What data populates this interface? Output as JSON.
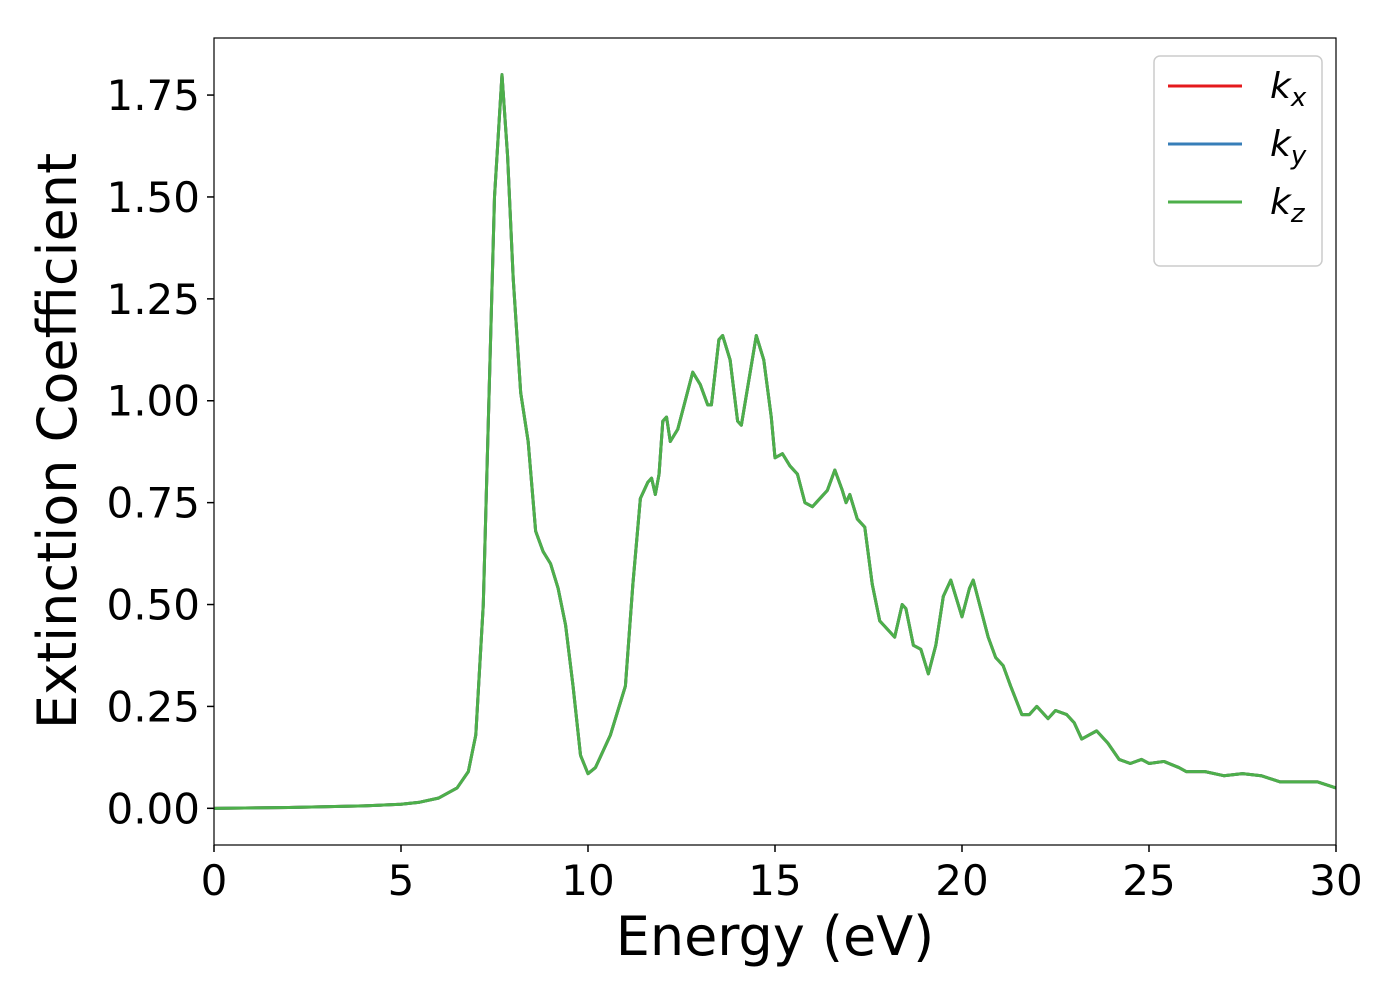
{
  "chart_data": {
    "type": "line",
    "xlabel": "Energy (eV)",
    "ylabel": "Extinction Coefficient",
    "x": [
      0,
      2,
      4,
      5,
      5.5,
      6,
      6.5,
      6.8,
      7.0,
      7.2,
      7.35,
      7.5,
      7.7,
      7.85,
      8.0,
      8.2,
      8.4,
      8.6,
      8.8,
      9.0,
      9.2,
      9.4,
      9.6,
      9.8,
      10.0,
      10.2,
      10.4,
      10.6,
      10.8,
      11.0,
      11.2,
      11.4,
      11.6,
      11.7,
      11.8,
      11.9,
      12.0,
      12.1,
      12.2,
      12.4,
      12.6,
      12.8,
      13.0,
      13.2,
      13.3,
      13.5,
      13.6,
      13.8,
      14.0,
      14.1,
      14.3,
      14.5,
      14.7,
      14.9,
      15.0,
      15.2,
      15.4,
      15.6,
      15.8,
      16.0,
      16.2,
      16.4,
      16.6,
      16.8,
      16.9,
      17.0,
      17.2,
      17.4,
      17.6,
      17.8,
      18.0,
      18.2,
      18.4,
      18.5,
      18.7,
      18.9,
      19.1,
      19.3,
      19.5,
      19.7,
      19.9,
      20.0,
      20.2,
      20.3,
      20.5,
      20.7,
      20.9,
      21.1,
      21.3,
      21.6,
      21.8,
      22.0,
      22.3,
      22.5,
      22.8,
      23.0,
      23.2,
      23.4,
      23.6,
      23.9,
      24.2,
      24.5,
      24.8,
      25.0,
      25.4,
      25.8,
      26.0,
      26.5,
      27.0,
      27.5,
      28.0,
      28.5,
      29.0,
      29.5,
      30.0
    ],
    "series": [
      {
        "name": "kx",
        "color": "#e41a1c",
        "values": [
          0,
          0.002,
          0.006,
          0.01,
          0.015,
          0.025,
          0.05,
          0.09,
          0.18,
          0.5,
          1.0,
          1.5,
          1.8,
          1.6,
          1.3,
          1.02,
          0.9,
          0.68,
          0.63,
          0.6,
          0.54,
          0.45,
          0.3,
          0.13,
          0.085,
          0.1,
          0.14,
          0.18,
          0.24,
          0.3,
          0.55,
          0.76,
          0.8,
          0.81,
          0.77,
          0.82,
          0.95,
          0.96,
          0.9,
          0.93,
          1.0,
          1.07,
          1.04,
          0.99,
          0.99,
          1.15,
          1.16,
          1.1,
          0.95,
          0.94,
          1.05,
          1.16,
          1.1,
          0.96,
          0.86,
          0.87,
          0.84,
          0.82,
          0.75,
          0.74,
          0.76,
          0.78,
          0.83,
          0.78,
          0.75,
          0.77,
          0.71,
          0.69,
          0.55,
          0.46,
          0.44,
          0.42,
          0.5,
          0.49,
          0.4,
          0.39,
          0.33,
          0.4,
          0.52,
          0.56,
          0.5,
          0.47,
          0.54,
          0.56,
          0.49,
          0.42,
          0.37,
          0.35,
          0.3,
          0.23,
          0.23,
          0.25,
          0.22,
          0.24,
          0.23,
          0.21,
          0.17,
          0.18,
          0.19,
          0.16,
          0.12,
          0.11,
          0.12,
          0.11,
          0.115,
          0.1,
          0.09,
          0.09,
          0.08,
          0.085,
          0.08,
          0.065,
          0.065,
          0.065,
          0.05
        ]
      },
      {
        "name": "ky",
        "color": "#377eb8",
        "values": [
          0,
          0.002,
          0.006,
          0.01,
          0.015,
          0.025,
          0.05,
          0.09,
          0.18,
          0.5,
          1.0,
          1.5,
          1.8,
          1.6,
          1.3,
          1.02,
          0.9,
          0.68,
          0.63,
          0.6,
          0.54,
          0.45,
          0.3,
          0.13,
          0.085,
          0.1,
          0.14,
          0.18,
          0.24,
          0.3,
          0.55,
          0.76,
          0.8,
          0.81,
          0.77,
          0.82,
          0.95,
          0.96,
          0.9,
          0.93,
          1.0,
          1.07,
          1.04,
          0.99,
          0.99,
          1.15,
          1.16,
          1.1,
          0.95,
          0.94,
          1.05,
          1.16,
          1.1,
          0.96,
          0.86,
          0.87,
          0.84,
          0.82,
          0.75,
          0.74,
          0.76,
          0.78,
          0.83,
          0.78,
          0.75,
          0.77,
          0.71,
          0.69,
          0.55,
          0.46,
          0.44,
          0.42,
          0.5,
          0.49,
          0.4,
          0.39,
          0.33,
          0.4,
          0.52,
          0.56,
          0.5,
          0.47,
          0.54,
          0.56,
          0.49,
          0.42,
          0.37,
          0.35,
          0.3,
          0.23,
          0.23,
          0.25,
          0.22,
          0.24,
          0.23,
          0.21,
          0.17,
          0.18,
          0.19,
          0.16,
          0.12,
          0.11,
          0.12,
          0.11,
          0.115,
          0.1,
          0.09,
          0.09,
          0.08,
          0.085,
          0.08,
          0.065,
          0.065,
          0.065,
          0.05
        ]
      },
      {
        "name": "kz",
        "color": "#4daf4a",
        "values": [
          0,
          0.002,
          0.006,
          0.01,
          0.015,
          0.025,
          0.05,
          0.09,
          0.18,
          0.5,
          1.0,
          1.5,
          1.8,
          1.6,
          1.3,
          1.02,
          0.9,
          0.68,
          0.63,
          0.6,
          0.54,
          0.45,
          0.3,
          0.13,
          0.085,
          0.1,
          0.14,
          0.18,
          0.24,
          0.3,
          0.55,
          0.76,
          0.8,
          0.81,
          0.77,
          0.82,
          0.95,
          0.96,
          0.9,
          0.93,
          1.0,
          1.07,
          1.04,
          0.99,
          0.99,
          1.15,
          1.16,
          1.1,
          0.95,
          0.94,
          1.05,
          1.16,
          1.1,
          0.96,
          0.86,
          0.87,
          0.84,
          0.82,
          0.75,
          0.74,
          0.76,
          0.78,
          0.83,
          0.78,
          0.75,
          0.77,
          0.71,
          0.69,
          0.55,
          0.46,
          0.44,
          0.42,
          0.5,
          0.49,
          0.4,
          0.39,
          0.33,
          0.4,
          0.52,
          0.56,
          0.5,
          0.47,
          0.54,
          0.56,
          0.49,
          0.42,
          0.37,
          0.35,
          0.3,
          0.23,
          0.23,
          0.25,
          0.22,
          0.24,
          0.23,
          0.21,
          0.17,
          0.18,
          0.19,
          0.16,
          0.12,
          0.11,
          0.12,
          0.11,
          0.115,
          0.1,
          0.09,
          0.09,
          0.08,
          0.085,
          0.08,
          0.065,
          0.065,
          0.065,
          0.05
        ]
      }
    ],
    "xlim": [
      0,
      30
    ],
    "xticks": [
      0,
      5,
      10,
      15,
      20,
      25,
      30
    ],
    "ylim": [
      -0.09,
      1.89
    ],
    "yticks": [
      {
        "value": 0,
        "label": "0.00"
      },
      {
        "value": 0.25,
        "label": "0.25"
      },
      {
        "value": 0.5,
        "label": "0.50"
      },
      {
        "value": 0.75,
        "label": "0.75"
      },
      {
        "value": 1,
        "label": "1.00"
      },
      {
        "value": 1.25,
        "label": "1.25"
      },
      {
        "value": 1.5,
        "label": "1.50"
      },
      {
        "value": 1.75,
        "label": "1.75"
      }
    ],
    "legend": "upper right",
    "grid": false
  }
}
